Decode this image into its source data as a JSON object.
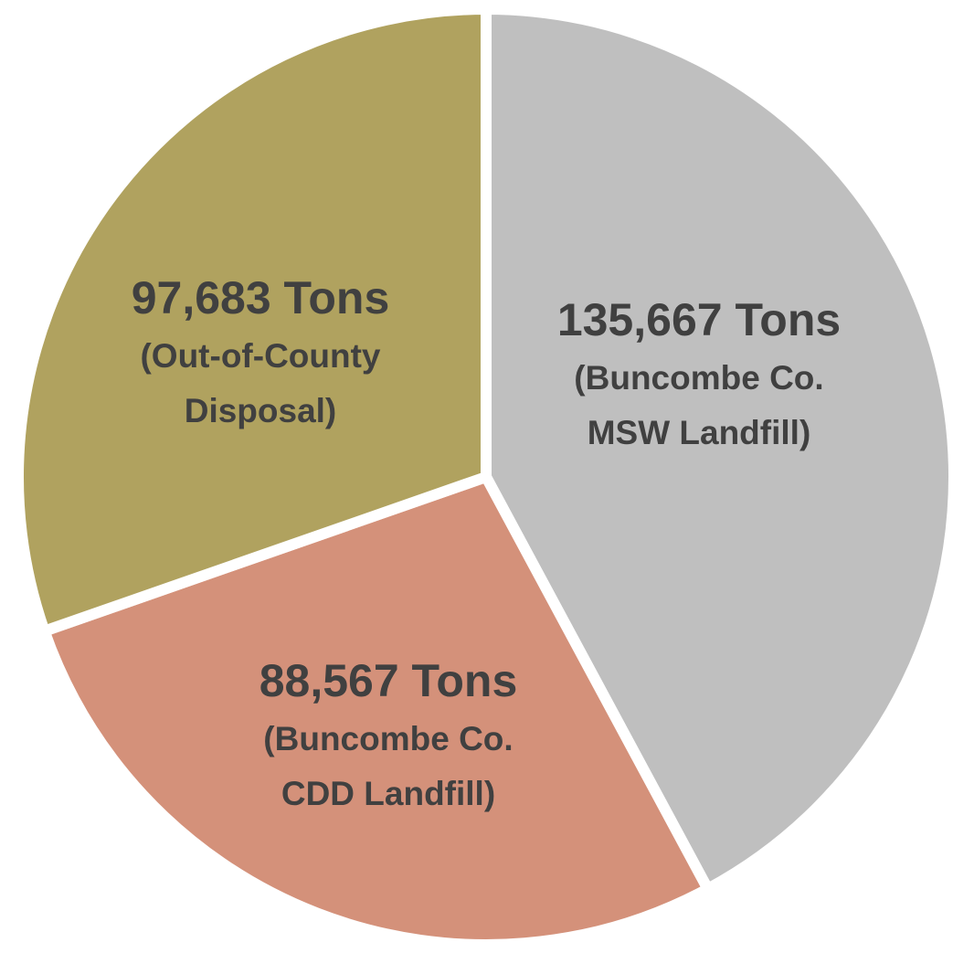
{
  "chart_data": {
    "type": "pie",
    "categories": [
      "(Buncombe Co. MSW Landfill)",
      "(Buncombe Co. CDD Landfill)",
      "(Out-of-County Disposal)"
    ],
    "values": [
      135667,
      88567,
      97683
    ],
    "value_labels": [
      "135,667 Tons",
      "88,567 Tons",
      "97,683 Tons"
    ],
    "colors": [
      "#bfbfbf",
      "#d4917a",
      "#b0a25f"
    ]
  }
}
